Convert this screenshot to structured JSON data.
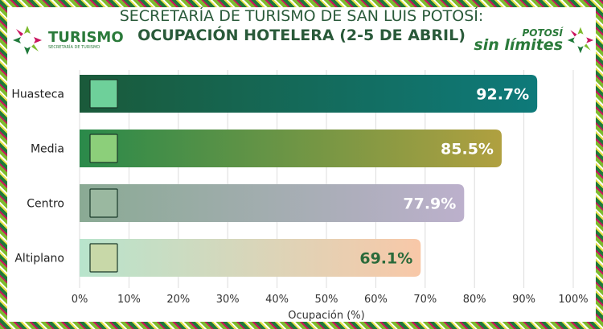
{
  "header": {
    "title_line1": "SECRETARÍA DE TURISMO DE SAN LUIS POTOSÍ:",
    "title_line2": "OCUPACIÓN HOTELERA (2-5 DE ABRIL)",
    "logo_left": {
      "name": "TURISMO",
      "subtitle": "SECRETARÍA DE TURISMO"
    },
    "logo_right": {
      "line1": "POTOSÍ",
      "line2": "sin límites"
    }
  },
  "chart_data": {
    "type": "bar",
    "orientation": "horizontal",
    "title": "SECRETARÍA DE TURISMO DE SAN LUIS POTOSÍ: OCUPACIÓN HOTELERA (2-5 DE ABRIL)",
    "categories": [
      "Huasteca",
      "Media",
      "Centro",
      "Altiplano"
    ],
    "values": [
      92.7,
      85.5,
      77.9,
      69.1
    ],
    "data_labels": [
      "92.7%",
      "85.5%",
      "77.9%",
      "69.1%"
    ],
    "xlabel": "Ocupación (%)",
    "ylabel": "",
    "xlim": [
      0,
      100
    ],
    "xticks": [
      "0%",
      "10%",
      "20%",
      "30%",
      "40%",
      "50%",
      "60%",
      "70%",
      "80%",
      "90%",
      "100%"
    ],
    "grid": true,
    "icons": [
      "waterfall-icon",
      "forest-river-icon",
      "cathedral-icon",
      "desert-cactus-icon"
    ],
    "gradients": [
      [
        "#1a5a3a",
        "#0e7a7a"
      ],
      [
        "#2a8a4a",
        "#b0a040"
      ],
      [
        "#8aaa94",
        "#bcb0cc"
      ],
      [
        "#b8e4cc",
        "#f8c8a8"
      ]
    ],
    "label_colors": [
      "#ffffff",
      "#ffffff",
      "#ffffff",
      "#2a6a3a"
    ]
  }
}
